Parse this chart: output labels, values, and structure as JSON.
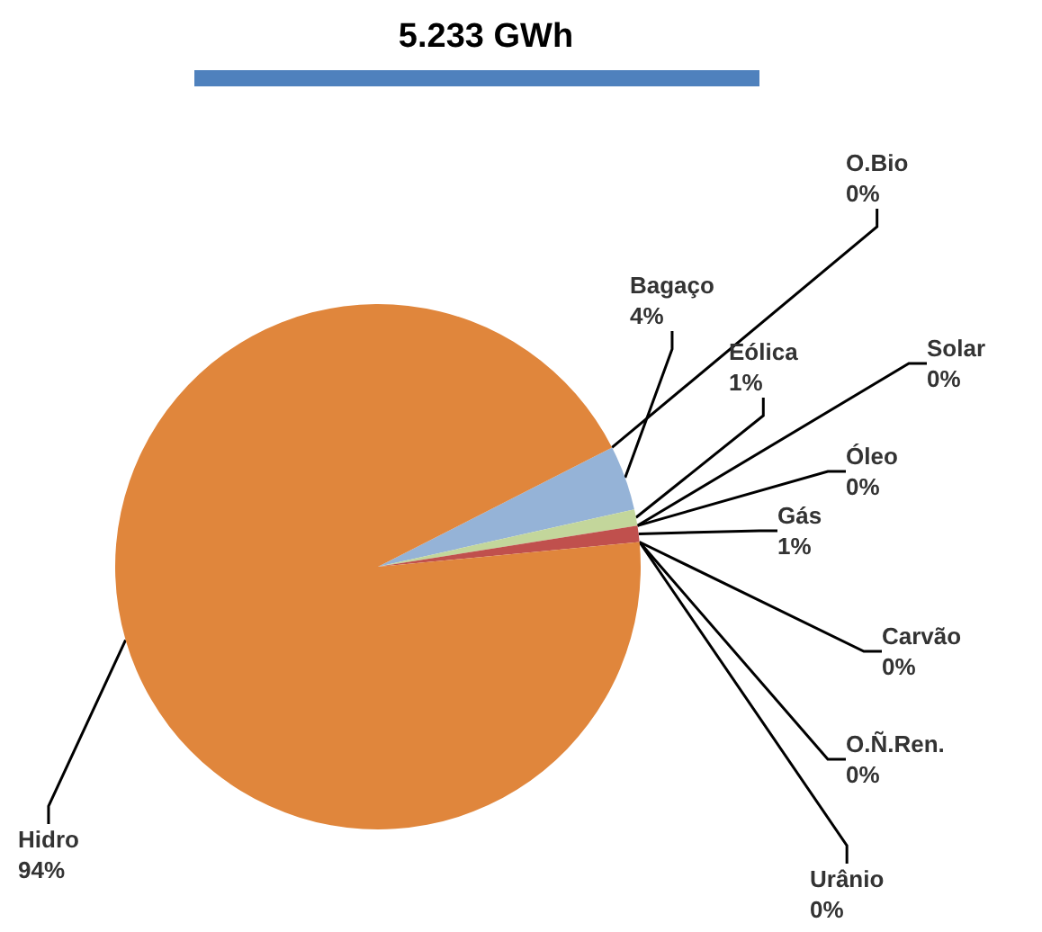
{
  "chart_data": {
    "type": "pie",
    "title": "5.233 GWh",
    "categories": [
      "O.Bio",
      "Bagaço",
      "Eólica",
      "Solar",
      "Óleo",
      "Gás",
      "Carvão",
      "O.Ñ.Ren.",
      "Urânio",
      "Hidro"
    ],
    "values": [
      0,
      4,
      1,
      0,
      0,
      1,
      0,
      0,
      0,
      94
    ],
    "value_labels": [
      "0%",
      "4%",
      "1%",
      "0%",
      "0%",
      "1%",
      "0%",
      "0%",
      "0%",
      "94%"
    ],
    "colors": [
      "#8064a2",
      "#95b3d7",
      "#c3d69b",
      "#4f81bd",
      "#7f7f7f",
      "#c0504d",
      "#4bacc6",
      "#9bbb59",
      "#f79646",
      "#e0863c"
    ],
    "legend": false
  }
}
